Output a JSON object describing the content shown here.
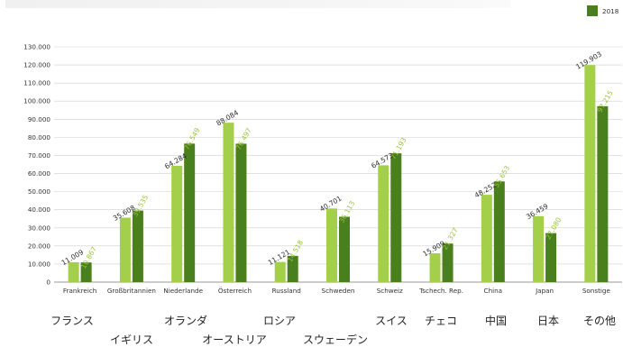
{
  "chart_data": {
    "type": "bar",
    "categories": [
      "Frankreich",
      "Großbritannien",
      "Niederlande",
      "Österreich",
      "Russland",
      "Schweden",
      "Schweiz",
      "Tschech. Rep.",
      "China",
      "Japan",
      "Sonstige"
    ],
    "series": [
      {
        "name": "",
        "color": "#a4cf4a",
        "values": [
          11009,
          35608,
          64284,
          88084,
          11121,
          40701,
          64573,
          15909,
          48252,
          36459,
          119903
        ],
        "labels": [
          "11.009",
          "35.608",
          "64.284",
          "88.084",
          "11.121",
          "40.701",
          "64.573",
          "15.909",
          "48.252",
          "36.459",
          "119.903"
        ]
      },
      {
        "name": "2018",
        "color": "#4a7f1e",
        "values": [
          10867,
          39535,
          76549,
          76497,
          14518,
          36113,
          71193,
          21327,
          55653,
          27080,
          97215
        ],
        "labels": [
          "10.867",
          "39.535",
          "76.549",
          "76.497",
          "14.518",
          "36.113",
          "71.193",
          "21.327",
          "55.653",
          "27.080",
          "97.215"
        ]
      }
    ],
    "ylim": [
      0,
      130000
    ],
    "yticks": [
      "0",
      "10.000",
      "20.000",
      "30.000",
      "40.000",
      "50.000",
      "60.000",
      "70.000",
      "80.000",
      "90.000",
      "100.000",
      "110.000",
      "120.000",
      "130.000"
    ],
    "ytick_values": [
      0,
      10000,
      20000,
      30000,
      40000,
      50000,
      60000,
      70000,
      80000,
      90000,
      100000,
      110000,
      120000,
      130000
    ],
    "grid": true,
    "legend": "top-right",
    "title": "",
    "xlabel": "",
    "ylabel": ""
  },
  "japanese_labels": [
    "フランス",
    "イギリス",
    "オランダ",
    "オーストリア",
    "ロシア",
    "スウェーデン",
    "スイス",
    "チェコ",
    "中国",
    "日本",
    "その他"
  ]
}
